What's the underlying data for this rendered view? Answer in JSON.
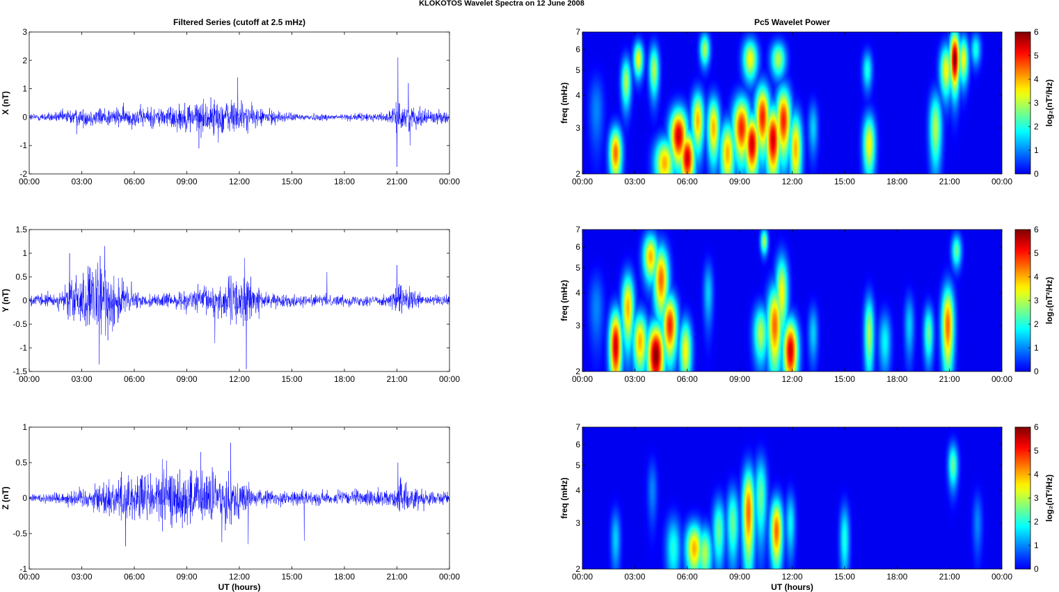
{
  "figure": {
    "title": "KLOKOTOS Wavelet Spectra on 12 June      2008"
  },
  "chart_data": [
    {
      "type": "line",
      "panel": "left-top",
      "title": "Filtered Series (cutoff at 2.5 mHz)",
      "ylabel": "X (nT)",
      "xlabel": "",
      "xlim": [
        0,
        24
      ],
      "ylim": [
        -2,
        3
      ],
      "x_ticks": [
        "00:00",
        "03:00",
        "06:00",
        "09:00",
        "12:00",
        "15:00",
        "18:00",
        "21:00",
        "00:00"
      ],
      "y_ticks": [
        "-2",
        "-1",
        "0",
        "1",
        "2",
        "3"
      ],
      "color": "#0000ff",
      "envelope": [
        {
          "t": 0,
          "a": 0.12
        },
        {
          "t": 1.5,
          "a": 0.15
        },
        {
          "t": 2.3,
          "a": 0.25
        },
        {
          "t": 4.0,
          "a": 0.3
        },
        {
          "t": 6.0,
          "a": 0.3
        },
        {
          "t": 8.0,
          "a": 0.35
        },
        {
          "t": 9.5,
          "a": 0.5
        },
        {
          "t": 11.8,
          "a": 0.55
        },
        {
          "t": 13.0,
          "a": 0.3
        },
        {
          "t": 15.0,
          "a": 0.12
        },
        {
          "t": 18.0,
          "a": 0.1
        },
        {
          "t": 20.5,
          "a": 0.15
        },
        {
          "t": 21.2,
          "a": 0.45
        },
        {
          "t": 22.0,
          "a": 0.3
        },
        {
          "t": 24,
          "a": 0.15
        }
      ],
      "spikes": [
        {
          "t": 21.05,
          "y": 2.1
        },
        {
          "t": 21.0,
          "y": -1.75
        },
        {
          "t": 11.9,
          "y": 1.4
        },
        {
          "t": 21.65,
          "y": 1.2
        },
        {
          "t": 9.7,
          "y": -1.1
        },
        {
          "t": 21.75,
          "y": -1.0
        },
        {
          "t": 2.7,
          "y": -0.6
        },
        {
          "t": 10.8,
          "y": -0.9
        }
      ]
    },
    {
      "type": "line",
      "panel": "left-middle",
      "title": "",
      "ylabel": "Y (nT)",
      "xlabel": "",
      "xlim": [
        0,
        24
      ],
      "ylim": [
        -1.5,
        1.5
      ],
      "x_ticks": [
        "00:00",
        "03:00",
        "06:00",
        "09:00",
        "12:00",
        "15:00",
        "18:00",
        "21:00",
        "00:00"
      ],
      "y_ticks": [
        "-1.5",
        "-1",
        "-0.5",
        "0",
        "0.5",
        "1",
        "1.5"
      ],
      "color": "#0000ff",
      "envelope": [
        {
          "t": 0,
          "a": 0.1
        },
        {
          "t": 1.8,
          "a": 0.15
        },
        {
          "t": 2.5,
          "a": 0.45
        },
        {
          "t": 4.2,
          "a": 0.7
        },
        {
          "t": 5.5,
          "a": 0.35
        },
        {
          "t": 6.5,
          "a": 0.1
        },
        {
          "t": 8.5,
          "a": 0.15
        },
        {
          "t": 10.5,
          "a": 0.3
        },
        {
          "t": 12.3,
          "a": 0.5
        },
        {
          "t": 13.5,
          "a": 0.12
        },
        {
          "t": 16.5,
          "a": 0.1
        },
        {
          "t": 20.5,
          "a": 0.1
        },
        {
          "t": 21.1,
          "a": 0.3
        },
        {
          "t": 22.5,
          "a": 0.1
        },
        {
          "t": 24,
          "a": 0.1
        }
      ],
      "spikes": [
        {
          "t": 4.3,
          "y": 1.15
        },
        {
          "t": 4.0,
          "y": -1.35
        },
        {
          "t": 12.4,
          "y": -1.45
        },
        {
          "t": 12.3,
          "y": 0.9
        },
        {
          "t": 17.0,
          "y": 0.6
        },
        {
          "t": 2.3,
          "y": 1.0
        },
        {
          "t": 10.6,
          "y": -0.9
        },
        {
          "t": 21.0,
          "y": 0.75
        }
      ]
    },
    {
      "type": "line",
      "panel": "left-bottom",
      "title": "",
      "ylabel": "Z (nT)",
      "xlabel": "UT (hours)",
      "xlim": [
        0,
        24
      ],
      "ylim": [
        -1,
        1
      ],
      "x_ticks": [
        "00:00",
        "03:00",
        "06:00",
        "09:00",
        "12:00",
        "15:00",
        "18:00",
        "21:00",
        "00:00"
      ],
      "y_ticks": [
        "-1",
        "-0.5",
        "0",
        "0.5",
        "1"
      ],
      "color": "#0000ff",
      "envelope": [
        {
          "t": 0,
          "a": 0.05
        },
        {
          "t": 2.0,
          "a": 0.08
        },
        {
          "t": 3.5,
          "a": 0.15
        },
        {
          "t": 5.5,
          "a": 0.3
        },
        {
          "t": 8.0,
          "a": 0.35
        },
        {
          "t": 10.0,
          "a": 0.35
        },
        {
          "t": 11.5,
          "a": 0.3
        },
        {
          "t": 13.0,
          "a": 0.1
        },
        {
          "t": 16.0,
          "a": 0.08
        },
        {
          "t": 20.5,
          "a": 0.1
        },
        {
          "t": 21.2,
          "a": 0.2
        },
        {
          "t": 22.5,
          "a": 0.12
        },
        {
          "t": 24,
          "a": 0.06
        }
      ],
      "spikes": [
        {
          "t": 11.5,
          "y": 0.78
        },
        {
          "t": 9.8,
          "y": 0.65
        },
        {
          "t": 11.0,
          "y": -0.62
        },
        {
          "t": 5.5,
          "y": -0.68
        },
        {
          "t": 12.5,
          "y": -0.65
        },
        {
          "t": 21.05,
          "y": 0.5
        },
        {
          "t": 7.6,
          "y": 0.55
        },
        {
          "t": 15.7,
          "y": -0.6
        }
      ]
    },
    {
      "type": "heatmap",
      "panel": "right-top",
      "title": "Pc5 Wavelet Power",
      "ylabel": "freq (mHz)",
      "xlabel": "",
      "xlim": [
        0,
        24
      ],
      "ylim": [
        2,
        7
      ],
      "y_scale": "log",
      "x_ticks": [
        "00:00",
        "03:00",
        "06:00",
        "09:00",
        "12:00",
        "15:00",
        "18:00",
        "21:00",
        "00:00"
      ],
      "y_ticks": [
        "2",
        "3",
        "4",
        "5",
        "6",
        "7"
      ],
      "colorbar": {
        "label": "log₂(nT²/Hz)",
        "ticks": [
          "0",
          "1",
          "2",
          "3",
          "4",
          "5",
          "6"
        ],
        "range": [
          0,
          6
        ]
      },
      "blobs": [
        {
          "t": 1.9,
          "f": 2.4,
          "p": 4.5,
          "wt": 0.25,
          "wf": 0.4
        },
        {
          "t": 2.5,
          "f": 4.5,
          "p": 3.0,
          "wt": 0.2,
          "wf": 0.7
        },
        {
          "t": 3.2,
          "f": 5.5,
          "p": 3.5,
          "wt": 0.2,
          "wf": 0.6
        },
        {
          "t": 4.1,
          "f": 5.0,
          "p": 3.0,
          "wt": 0.2,
          "wf": 0.8
        },
        {
          "t": 4.7,
          "f": 2.2,
          "p": 4.0,
          "wt": 0.4,
          "wf": 0.35
        },
        {
          "t": 5.5,
          "f": 2.8,
          "p": 5.5,
          "wt": 0.35,
          "wf": 0.5
        },
        {
          "t": 6.0,
          "f": 2.3,
          "p": 5.5,
          "wt": 0.3,
          "wf": 0.4
        },
        {
          "t": 6.6,
          "f": 3.2,
          "p": 4.0,
          "wt": 0.25,
          "wf": 0.6
        },
        {
          "t": 7.5,
          "f": 3.0,
          "p": 4.0,
          "wt": 0.25,
          "wf": 0.6
        },
        {
          "t": 8.3,
          "f": 2.4,
          "p": 4.0,
          "wt": 0.3,
          "wf": 0.5
        },
        {
          "t": 9.1,
          "f": 3.0,
          "p": 5.0,
          "wt": 0.35,
          "wf": 0.6
        },
        {
          "t": 9.7,
          "f": 2.6,
          "p": 5.5,
          "wt": 0.3,
          "wf": 0.5
        },
        {
          "t": 10.3,
          "f": 3.3,
          "p": 5.0,
          "wt": 0.3,
          "wf": 0.7
        },
        {
          "t": 10.9,
          "f": 2.7,
          "p": 5.5,
          "wt": 0.3,
          "wf": 0.6
        },
        {
          "t": 11.5,
          "f": 3.2,
          "p": 5.0,
          "wt": 0.3,
          "wf": 0.7
        },
        {
          "t": 12.2,
          "f": 2.5,
          "p": 4.0,
          "wt": 0.25,
          "wf": 0.6
        },
        {
          "t": 9.6,
          "f": 5.5,
          "p": 3.5,
          "wt": 0.3,
          "wf": 0.7
        },
        {
          "t": 11.2,
          "f": 5.5,
          "p": 3.0,
          "wt": 0.3,
          "wf": 0.6
        },
        {
          "t": 13.2,
          "f": 3.0,
          "p": 1.5,
          "wt": 0.2,
          "wf": 0.5
        },
        {
          "t": 16.4,
          "f": 2.6,
          "p": 3.5,
          "wt": 0.25,
          "wf": 0.5
        },
        {
          "t": 16.3,
          "f": 5.0,
          "p": 2.0,
          "wt": 0.2,
          "wf": 0.6
        },
        {
          "t": 20.2,
          "f": 3.0,
          "p": 3.0,
          "wt": 0.25,
          "wf": 0.7
        },
        {
          "t": 20.8,
          "f": 5.0,
          "p": 3.5,
          "wt": 0.25,
          "wf": 0.8
        },
        {
          "t": 21.3,
          "f": 5.5,
          "p": 6.0,
          "wt": 0.2,
          "wf": 1.0
        },
        {
          "t": 21.8,
          "f": 5.5,
          "p": 3.5,
          "wt": 0.2,
          "wf": 0.8
        },
        {
          "t": 22.5,
          "f": 6.0,
          "p": 2.0,
          "wt": 0.2,
          "wf": 0.6
        },
        {
          "t": 0.8,
          "f": 3.5,
          "p": 1.0,
          "wt": 0.3,
          "wf": 0.8
        },
        {
          "t": 7.0,
          "f": 6.0,
          "p": 3.0,
          "wt": 0.2,
          "wf": 0.6
        }
      ]
    },
    {
      "type": "heatmap",
      "panel": "right-middle",
      "title": "",
      "ylabel": "freq (mHz)",
      "xlabel": "",
      "xlim": [
        0,
        24
      ],
      "ylim": [
        2,
        7
      ],
      "y_scale": "log",
      "x_ticks": [
        "00:00",
        "03:00",
        "06:00",
        "09:00",
        "12:00",
        "15:00",
        "18:00",
        "21:00",
        "00:00"
      ],
      "y_ticks": [
        "2",
        "3",
        "4",
        "5",
        "6",
        "7"
      ],
      "colorbar": {
        "label": "log₂(nT²/Hz)",
        "ticks": [
          "0",
          "1",
          "2",
          "3",
          "4",
          "5",
          "6"
        ],
        "range": [
          0,
          6
        ]
      },
      "blobs": [
        {
          "t": 1.9,
          "f": 2.5,
          "p": 5.5,
          "wt": 0.25,
          "wf": 0.6
        },
        {
          "t": 2.6,
          "f": 3.5,
          "p": 4.0,
          "wt": 0.25,
          "wf": 0.8
        },
        {
          "t": 3.3,
          "f": 2.6,
          "p": 4.0,
          "wt": 0.3,
          "wf": 0.5
        },
        {
          "t": 4.2,
          "f": 2.3,
          "p": 6.0,
          "wt": 0.35,
          "wf": 0.5
        },
        {
          "t": 4.5,
          "f": 4.5,
          "p": 4.5,
          "wt": 0.3,
          "wf": 1.0
        },
        {
          "t": 5.0,
          "f": 3.0,
          "p": 5.0,
          "wt": 0.3,
          "wf": 0.6
        },
        {
          "t": 5.9,
          "f": 2.4,
          "p": 3.5,
          "wt": 0.25,
          "wf": 0.5
        },
        {
          "t": 3.9,
          "f": 5.5,
          "p": 4.0,
          "wt": 0.3,
          "wf": 0.8
        },
        {
          "t": 10.2,
          "f": 2.8,
          "p": 3.0,
          "wt": 0.3,
          "wf": 0.5
        },
        {
          "t": 11.0,
          "f": 3.0,
          "p": 4.5,
          "wt": 0.3,
          "wf": 0.8
        },
        {
          "t": 11.9,
          "f": 2.4,
          "p": 5.5,
          "wt": 0.3,
          "wf": 0.5
        },
        {
          "t": 11.4,
          "f": 4.0,
          "p": 3.5,
          "wt": 0.25,
          "wf": 1.0
        },
        {
          "t": 10.4,
          "f": 6.3,
          "p": 3.0,
          "wt": 0.15,
          "wf": 0.5
        },
        {
          "t": 13.2,
          "f": 2.8,
          "p": 1.5,
          "wt": 0.2,
          "wf": 0.5
        },
        {
          "t": 16.4,
          "f": 2.8,
          "p": 3.0,
          "wt": 0.2,
          "wf": 0.7
        },
        {
          "t": 17.3,
          "f": 2.6,
          "p": 1.8,
          "wt": 0.25,
          "wf": 0.5
        },
        {
          "t": 18.7,
          "f": 3.0,
          "p": 1.5,
          "wt": 0.2,
          "wf": 0.6
        },
        {
          "t": 19.8,
          "f": 2.8,
          "p": 2.5,
          "wt": 0.2,
          "wf": 0.5
        },
        {
          "t": 20.9,
          "f": 3.0,
          "p": 4.5,
          "wt": 0.25,
          "wf": 0.8
        },
        {
          "t": 21.4,
          "f": 5.8,
          "p": 2.5,
          "wt": 0.2,
          "wf": 0.6
        },
        {
          "t": 0.8,
          "f": 3.5,
          "p": 1.0,
          "wt": 0.3,
          "wf": 0.8
        },
        {
          "t": 7.2,
          "f": 4.0,
          "p": 1.5,
          "wt": 0.2,
          "wf": 0.8
        }
      ]
    },
    {
      "type": "heatmap",
      "panel": "right-bottom",
      "title": "",
      "ylabel": "freq (mHz)",
      "xlabel": "UT (hours)",
      "xlim": [
        0,
        24
      ],
      "ylim": [
        2,
        7
      ],
      "y_scale": "log",
      "x_ticks": [
        "00:00",
        "03:00",
        "06:00",
        "09:00",
        "12:00",
        "15:00",
        "18:00",
        "21:00",
        "00:00"
      ],
      "y_ticks": [
        "2",
        "3",
        "4",
        "5",
        "6",
        "7"
      ],
      "colorbar": {
        "label": "log₂(nT²/Hz)",
        "ticks": [
          "0",
          "1",
          "2",
          "3",
          "4",
          "5",
          "6"
        ],
        "range": [
          0,
          6
        ]
      },
      "blobs": [
        {
          "t": 6.4,
          "f": 2.4,
          "p": 4.0,
          "wt": 0.35,
          "wf": 0.4
        },
        {
          "t": 7.0,
          "f": 2.3,
          "p": 3.0,
          "wt": 0.3,
          "wf": 0.4
        },
        {
          "t": 5.2,
          "f": 2.4,
          "p": 2.0,
          "wt": 0.3,
          "wf": 0.5
        },
        {
          "t": 7.8,
          "f": 2.8,
          "p": 2.5,
          "wt": 0.25,
          "wf": 0.6
        },
        {
          "t": 8.6,
          "f": 3.0,
          "p": 2.5,
          "wt": 0.25,
          "wf": 0.7
        },
        {
          "t": 9.5,
          "f": 3.3,
          "p": 4.5,
          "wt": 0.25,
          "wf": 1.0
        },
        {
          "t": 10.2,
          "f": 3.8,
          "p": 2.5,
          "wt": 0.25,
          "wf": 1.0
        },
        {
          "t": 11.1,
          "f": 2.8,
          "p": 4.5,
          "wt": 0.25,
          "wf": 0.6
        },
        {
          "t": 11.9,
          "f": 3.0,
          "p": 1.8,
          "wt": 0.2,
          "wf": 0.6
        },
        {
          "t": 1.9,
          "f": 2.6,
          "p": 1.5,
          "wt": 0.2,
          "wf": 0.5
        },
        {
          "t": 15.0,
          "f": 2.6,
          "p": 2.0,
          "wt": 0.2,
          "wf": 0.6
        },
        {
          "t": 21.2,
          "f": 5.0,
          "p": 2.5,
          "wt": 0.2,
          "wf": 0.7
        },
        {
          "t": 22.6,
          "f": 3.0,
          "p": 1.0,
          "wt": 0.2,
          "wf": 0.6
        },
        {
          "t": 4.0,
          "f": 4.0,
          "p": 1.0,
          "wt": 0.2,
          "wf": 0.8
        }
      ]
    }
  ]
}
